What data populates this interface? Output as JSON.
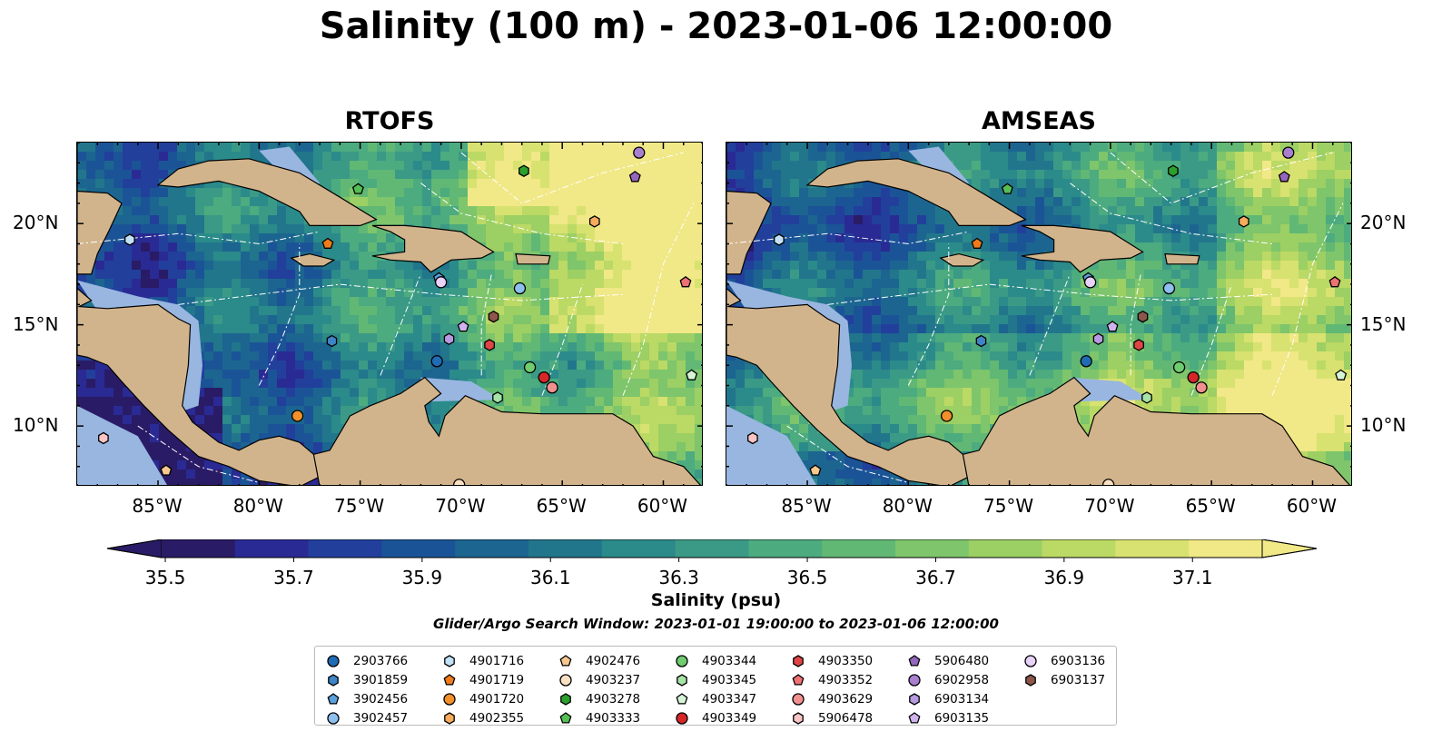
{
  "title": "Salinity (100 m) - 2023-01-06 12:00:00",
  "panels": [
    {
      "title": "RTOFS",
      "tone": "low"
    },
    {
      "title": "AMSEAS",
      "tone": "high"
    }
  ],
  "map_extent": {
    "lon": [
      -89,
      -58
    ],
    "lat": [
      7,
      24
    ]
  },
  "lon_ticks": [
    {
      "value": -85,
      "label": "85°W"
    },
    {
      "value": -80,
      "label": "80°W"
    },
    {
      "value": -75,
      "label": "75°W"
    },
    {
      "value": -70,
      "label": "70°W"
    },
    {
      "value": -65,
      "label": "65°W"
    },
    {
      "value": -60,
      "label": "60°W"
    }
  ],
  "lat_ticks": [
    {
      "value": 20,
      "label": "20°N"
    },
    {
      "value": 15,
      "label": "15°N"
    },
    {
      "value": 10,
      "label": "10°N"
    }
  ],
  "colorbar": {
    "label": "Salinity (psu)",
    "min": 35.5,
    "max": 37.1,
    "step": 0.1,
    "tick_labels": [
      "35.5",
      "35.7",
      "35.9",
      "36.1",
      "36.3",
      "36.5",
      "36.7",
      "36.9",
      "37.1"
    ],
    "colors": [
      "#2a1b66",
      "#2a2a94",
      "#223f9c",
      "#1b5496",
      "#1c6590",
      "#22768c",
      "#2b8a8a",
      "#3b9a86",
      "#4cab7f",
      "#61b874",
      "#7ec56b",
      "#9ccf64",
      "#bbd965",
      "#d8e270",
      "#f1e887"
    ]
  },
  "search_window": "Glider/Argo Search Window: 2023-01-01 19:00:00 to 2023-01-06 12:00:00",
  "colors": {
    "land": "#d2b48c",
    "shallow_water": "#98b6e0",
    "background": "#ffffff"
  },
  "platforms": [
    {
      "id": "2903766",
      "marker": "circle",
      "color": "#1f6cb5",
      "lon": -71.2,
      "lat": 13.2
    },
    {
      "id": "3901859",
      "marker": "hexagon",
      "color": "#3e84c6",
      "lon": -76.4,
      "lat": 14.2
    },
    {
      "id": "3902456",
      "marker": "pentagon",
      "color": "#5aa0dd",
      "lon": -71.1,
      "lat": 17.3
    },
    {
      "id": "3902457",
      "marker": "circle",
      "color": "#8dc0ee",
      "lon": -67.1,
      "lat": 16.8
    },
    {
      "id": "4901716",
      "marker": "hexagon",
      "color": "#c3e2f7",
      "lon": -86.4,
      "lat": 19.2
    },
    {
      "id": "4901719",
      "marker": "pentagon",
      "color": "#f07b1a",
      "lon": -76.6,
      "lat": 19.0
    },
    {
      "id": "4901720",
      "marker": "circle",
      "color": "#f2902a",
      "lon": -78.1,
      "lat": 10.5
    },
    {
      "id": "4902355",
      "marker": "hexagon",
      "color": "#f7ab5c",
      "lon": -63.4,
      "lat": 20.1
    },
    {
      "id": "4902476",
      "marker": "pentagon",
      "color": "#f7c98f",
      "lon": -84.6,
      "lat": 7.8
    },
    {
      "id": "4903237",
      "marker": "circle",
      "color": "#fbe1c4",
      "lon": -70.1,
      "lat": 7.1
    },
    {
      "id": "4903278",
      "marker": "hexagon",
      "color": "#2ca02c",
      "lon": -66.9,
      "lat": 22.6
    },
    {
      "id": "4903333",
      "marker": "pentagon",
      "color": "#55bf55",
      "lon": -75.1,
      "lat": 21.7
    },
    {
      "id": "4903344",
      "marker": "circle",
      "color": "#6fcc6f",
      "lon": -66.6,
      "lat": 12.9
    },
    {
      "id": "4903345",
      "marker": "hexagon",
      "color": "#a6e3a6",
      "lon": -68.2,
      "lat": 11.4
    },
    {
      "id": "4903347",
      "marker": "pentagon",
      "color": "#d6f5d6",
      "lon": -58.6,
      "lat": 12.5
    },
    {
      "id": "4903349",
      "marker": "circle",
      "color": "#d62728",
      "lon": -65.9,
      "lat": 12.4
    },
    {
      "id": "4903350",
      "marker": "hexagon",
      "color": "#e04546",
      "lon": -68.6,
      "lat": 14.0
    },
    {
      "id": "4903352",
      "marker": "pentagon",
      "color": "#ee7273",
      "lon": -58.9,
      "lat": 17.1
    },
    {
      "id": "4903629",
      "marker": "circle",
      "color": "#f29090",
      "lon": -65.5,
      "lat": 11.9
    },
    {
      "id": "5906478",
      "marker": "hexagon",
      "color": "#f9c4c4",
      "lon": -87.7,
      "lat": 9.4
    },
    {
      "id": "5906480",
      "marker": "pentagon",
      "color": "#9467bd",
      "lon": -61.4,
      "lat": 22.3
    },
    {
      "id": "6902958",
      "marker": "circle",
      "color": "#a97fcf",
      "lon": -61.2,
      "lat": 23.5
    },
    {
      "id": "6903134",
      "marker": "hexagon",
      "color": "#b79ae0",
      "lon": -70.6,
      "lat": 14.3
    },
    {
      "id": "6903135",
      "marker": "pentagon",
      "color": "#d0b3ee",
      "lon": -69.9,
      "lat": 14.9
    },
    {
      "id": "6903136",
      "marker": "circle",
      "color": "#e8d2f7",
      "lon": -71.0,
      "lat": 17.1
    },
    {
      "id": "6903137",
      "marker": "hexagon",
      "color": "#8c564b",
      "lon": -68.4,
      "lat": 15.4
    }
  ]
}
